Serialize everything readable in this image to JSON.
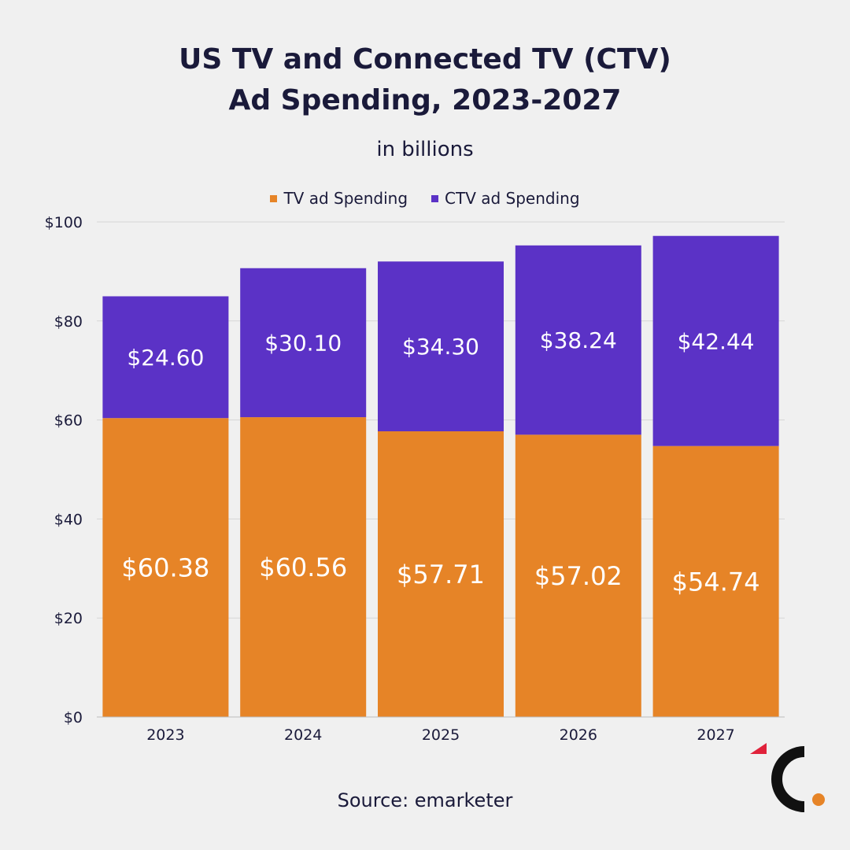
{
  "title_line1": "US TV and Connected TV (CTV)",
  "title_line2": "Ad Spending, 2023-2027",
  "subtitle": "in billions",
  "source": "Source: emarketer",
  "colors": {
    "tv": "#e68427",
    "ctv": "#5b32c6",
    "grid": "#d6d6d6",
    "text": "#1a1a3a"
  },
  "chart_data": {
    "type": "bar",
    "stacked": true,
    "categories": [
      "2023",
      "2024",
      "2025",
      "2026",
      "2027"
    ],
    "series": [
      {
        "name": "TV ad Spending",
        "values": [
          60.38,
          60.56,
          57.71,
          57.02,
          54.74
        ],
        "labels": [
          "$60.38",
          "$60.56",
          "$57.71",
          "$57.02",
          "$54.74"
        ]
      },
      {
        "name": "CTV ad Spending",
        "values": [
          24.6,
          30.1,
          34.3,
          38.24,
          42.44
        ],
        "labels": [
          "$24.60",
          "$30.10",
          "$34.30",
          "$38.24",
          "$42.44"
        ]
      }
    ],
    "ylim": [
      0,
      100
    ],
    "yticks": [
      0,
      20,
      40,
      60,
      80,
      100
    ],
    "ytick_labels": [
      "$0",
      "$20",
      "$40",
      "$60",
      "$80",
      "$100"
    ],
    "grid": true,
    "legend_position": "top-center"
  }
}
